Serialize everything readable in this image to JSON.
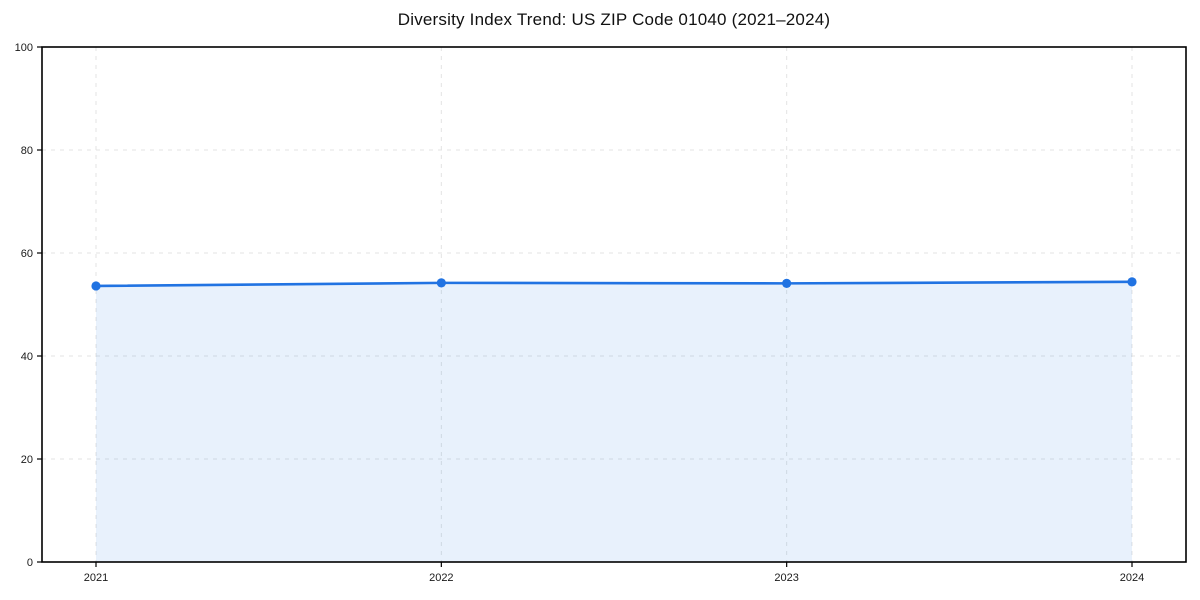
{
  "chart_data": {
    "type": "area",
    "title": "Diversity Index Trend: US ZIP Code 01040 (2021–2024)",
    "categories": [
      "2021",
      "2022",
      "2023",
      "2024"
    ],
    "series": [
      {
        "name": "Diversity Index",
        "values": [
          53.6,
          54.2,
          54.1,
          54.4
        ]
      }
    ],
    "xlabel": "",
    "ylabel": "",
    "ylim": [
      0,
      100
    ],
    "yticks": [
      0,
      20,
      40,
      60,
      80,
      100
    ],
    "grid": "dashed-horizontal-and-vertical",
    "legend": "none",
    "marker": "circle",
    "colors": {
      "line": "#2173e2",
      "marker": "#2173e2",
      "fill": "rgba(33,115,226,0.10)",
      "gridline": "#e3e3e3",
      "axis": "#000000",
      "tick_text": "#1a1a1a",
      "background": "#ffffff"
    }
  }
}
